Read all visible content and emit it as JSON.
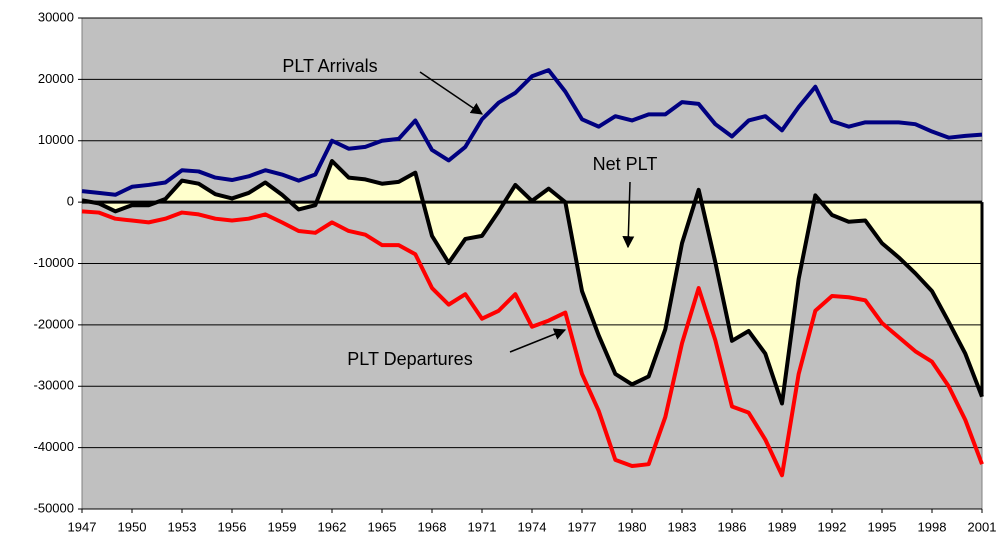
{
  "chart_data": {
    "type": "line",
    "x": [
      1947,
      1948,
      1949,
      1950,
      1951,
      1952,
      1953,
      1954,
      1955,
      1956,
      1957,
      1958,
      1959,
      1960,
      1961,
      1962,
      1963,
      1964,
      1965,
      1966,
      1967,
      1968,
      1969,
      1970,
      1971,
      1972,
      1973,
      1974,
      1975,
      1976,
      1977,
      1978,
      1979,
      1980,
      1981,
      1982,
      1983,
      1984,
      1985,
      1986,
      1987,
      1988,
      1989,
      1990,
      1991,
      1992,
      1993,
      1994,
      1995,
      1996,
      1997,
      1998,
      1999,
      2000,
      2001
    ],
    "xlim": [
      1947,
      2001
    ],
    "xticks": [
      1947,
      1950,
      1953,
      1956,
      1959,
      1962,
      1965,
      1968,
      1971,
      1974,
      1977,
      1980,
      1983,
      1986,
      1989,
      1992,
      1995,
      1998,
      2001
    ],
    "ylim": [
      -50000,
      30000
    ],
    "yticks": [
      -50000,
      -40000,
      -30000,
      -20000,
      -10000,
      0,
      10000,
      20000,
      30000
    ],
    "grid": true,
    "background": "#c0c0c0",
    "series": [
      {
        "name": "PLT Arrivals",
        "color": "#000080",
        "values": [
          1800,
          1500,
          1200,
          2500,
          2800,
          3200,
          5200,
          5000,
          4000,
          3600,
          4200,
          5200,
          4500,
          3500,
          4500,
          10000,
          8700,
          9000,
          10000,
          10300,
          13300,
          8500,
          6800,
          9000,
          13500,
          16200,
          17800,
          20500,
          21500,
          18000,
          13500,
          12300,
          14000,
          13300,
          14300,
          14300,
          16300,
          16000,
          12700,
          10700,
          13300,
          14000,
          11700,
          15500,
          18800,
          13200,
          12300,
          13000,
          13000,
          13000,
          12700,
          11500,
          10500,
          10800,
          11000
        ]
      },
      {
        "name": "PLT Departures",
        "color": "#ff0000",
        "values": [
          -1500,
          -1700,
          -2700,
          -3000,
          -3300,
          -2700,
          -1700,
          -2000,
          -2700,
          -3000,
          -2700,
          -2000,
          -3300,
          -4700,
          -5000,
          -3300,
          -4700,
          -5300,
          -7000,
          -7000,
          -8500,
          -14000,
          -16700,
          -15000,
          -19000,
          -17700,
          -15000,
          -20300,
          -19300,
          -18000,
          -28000,
          -34000,
          -42000,
          -43000,
          -42700,
          -35000,
          -23000,
          -14000,
          -22500,
          -33300,
          -34300,
          -38700,
          -44500,
          -28000,
          -17700,
          -15300,
          -15500,
          -16000,
          -19700,
          -22000,
          -24300,
          -26000,
          -30000,
          -35500,
          -42700
        ]
      },
      {
        "name": "Net PLT",
        "color": "#000000",
        "fill": "#ffffcc",
        "values": [
          300,
          -200,
          -1500,
          -500,
          -500,
          500,
          3500,
          3000,
          1300,
          600,
          1500,
          3200,
          1200,
          -1200,
          -500,
          6700,
          4000,
          3700,
          3000,
          3300,
          4800,
          -5500,
          -9900,
          -6000,
          -5500,
          -1500,
          2800,
          200,
          2200,
          0,
          -14500,
          -21700,
          -28000,
          -29700,
          -28400,
          -20700,
          -6700,
          2000,
          -9800,
          -22600,
          -21000,
          -24700,
          -32800,
          -12500,
          1100,
          -2100,
          -3200,
          -3000,
          -6700,
          -9000,
          -11600,
          -14500,
          -19500,
          -24700,
          -31700
        ]
      }
    ],
    "annotations": [
      "PLT Arrivals",
      "Net PLT",
      "PLT Departures"
    ]
  }
}
